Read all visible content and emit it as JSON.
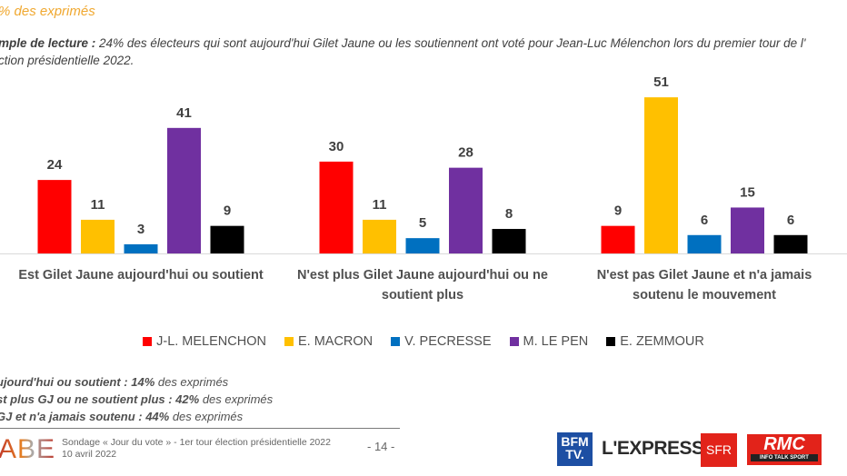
{
  "header": {
    "subtitle": "% des exprimés",
    "reading_label": "mple de lecture :",
    "reading_text": " 24% des électeurs qui sont aujourd'hui Gilet Jaune ou les soutiennent ont voté pour Jean-Luc Mélenchon lors du premier tour de l'",
    "reading_text_line2": "ction présidentielle 2022."
  },
  "chart_data": {
    "type": "bar",
    "title": "",
    "xlabel": "",
    "ylabel": "",
    "ylim": [
      0,
      55
    ],
    "grid": false,
    "legend_position": "bottom",
    "categories": [
      "Est Gilet Jaune aujourd'hui ou soutient",
      "N'est plus Gilet Jaune aujourd'hui ou ne soutient plus",
      "N'est pas Gilet Jaune et n'a jamais soutenu le mouvement"
    ],
    "category_lines": [
      [
        "Est Gilet Jaune aujourd'hui ou soutient"
      ],
      [
        "N'est plus Gilet Jaune aujourd'hui ou ne",
        "soutient plus"
      ],
      [
        "N'est pas Gilet Jaune et n'a jamais",
        "soutenu le mouvement"
      ]
    ],
    "series": [
      {
        "name": "J-L. MELENCHON",
        "color": "#ff0000",
        "values": [
          24,
          30,
          9
        ]
      },
      {
        "name": "E. MACRON",
        "color": "#ffc000",
        "values": [
          11,
          11,
          51
        ]
      },
      {
        "name": "V. PECRESSE",
        "color": "#0070c0",
        "values": [
          3,
          5,
          6
        ]
      },
      {
        "name": "M. LE PEN",
        "color": "#7030a0",
        "values": [
          41,
          28,
          15
        ]
      },
      {
        "name": "E. ZEMMOUR",
        "color": "#000000",
        "values": [
          9,
          8,
          6
        ]
      }
    ]
  },
  "notes": [
    {
      "bold": "ujourd'hui ou soutient : 14%",
      "rest": " des exprimés"
    },
    {
      "bold": "st plus GJ ou ne soutient plus : 42%",
      "rest": " des exprimés"
    },
    {
      "bold": " GJ et n'a jamais soutenu : 44%",
      "rest": " des exprimés"
    }
  ],
  "footer": {
    "logo": "ABE",
    "survey_line1": "Sondage « Jour du vote » - 1er tour élection présidentielle 2022",
    "survey_line2": "10 avril 2022",
    "page": "- 14 -",
    "partners": {
      "bfm_line1": "BFM",
      "bfm_line2": "TV.",
      "express": "L'EXPRESS",
      "sfr": "SFR",
      "rmc": "RMC",
      "rmc_tagline": "INFO TALK SPORT"
    }
  }
}
